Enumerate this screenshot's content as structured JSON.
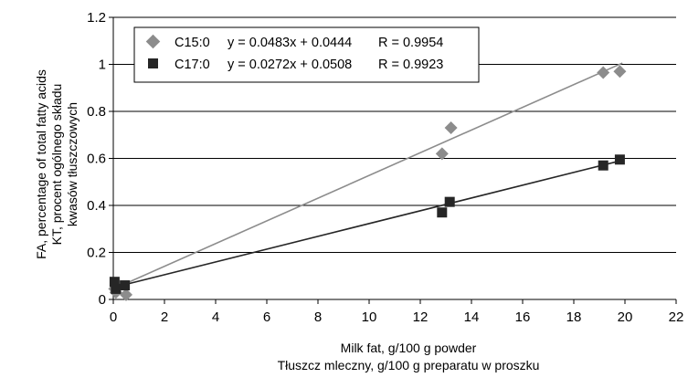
{
  "chart_data": {
    "type": "scatter",
    "xlabel": [
      "Milk fat, g/100 g powder",
      "Tłuszcz mleczny, g/100 g preparatu w proszku"
    ],
    "ylabel": [
      "FA, percentage of total fatty acids",
      "KT, procent ogólnego składu",
      "kwasów tłuszczowych"
    ],
    "xlim": [
      0,
      22
    ],
    "ylim": [
      0,
      1.2
    ],
    "xticks": [
      0,
      2,
      4,
      6,
      8,
      10,
      12,
      14,
      16,
      18,
      20,
      22
    ],
    "xtick_labels": [
      "0",
      "2",
      "4",
      "6",
      "8",
      "10",
      "12",
      "14",
      "16",
      "18",
      "20",
      "22"
    ],
    "yticks": [
      0,
      0.2,
      0.4,
      0.6,
      0.8,
      1,
      1.2
    ],
    "ytick_labels": [
      "0",
      "0.2",
      "0.4",
      "0.6",
      "0.8",
      "1",
      "1.2"
    ],
    "grid": "horizontal",
    "legend_position": "top-left",
    "series": [
      {
        "name": "C15:0",
        "marker": "diamond",
        "color": "#8c8c8c",
        "line_color": "#8c8c8c",
        "x": [
          0.05,
          0.1,
          0.5,
          12.85,
          13.2,
          19.15,
          19.8
        ],
        "y": [
          0.045,
          0.03,
          0.02,
          0.62,
          0.73,
          0.965,
          0.97
        ],
        "trendline": {
          "slope": 0.0483,
          "intercept": 0.0444,
          "x_range": [
            0,
            19.9
          ]
        },
        "legend_label": "C15:0",
        "equation": "y = 0.0483x + 0.0444",
        "r_text": "R = 0.9954"
      },
      {
        "name": "C17:0",
        "marker": "square",
        "color": "#262626",
        "line_color": "#262626",
        "x": [
          0.05,
          0.1,
          0.45,
          12.85,
          13.15,
          19.15,
          19.8
        ],
        "y": [
          0.075,
          0.045,
          0.06,
          0.37,
          0.415,
          0.57,
          0.595
        ],
        "trendline": {
          "slope": 0.0272,
          "intercept": 0.0508,
          "x_range": [
            0,
            19.9
          ]
        },
        "legend_label": "C17:0",
        "equation": "y = 0.0272x + 0.0508",
        "r_text": "R = 0.9923"
      }
    ]
  }
}
